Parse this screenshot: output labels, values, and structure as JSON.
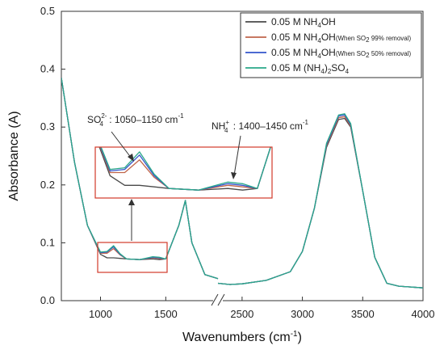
{
  "chart_data": {
    "type": "line",
    "xlabel": "Wavenumbers (cm",
    "xlabel_sup": "-1",
    "xlabel_close": ")",
    "ylabel": "Absorbance (A)",
    "ylim": [
      0,
      0.5
    ],
    "y_ticks": [
      "0.0",
      "0.1",
      "0.2",
      "0.3",
      "0.4",
      "0.5"
    ],
    "x_ticks": [
      "1000",
      "1500",
      "2500",
      "3000",
      "3500",
      "4000"
    ],
    "x_axis_break": [
      1900,
      2300
    ],
    "legend": {
      "placement": "top-right",
      "entries": [
        {
          "main": "0.05 M NH",
          "sub": "4",
          "tail": "OH",
          "note": ""
        },
        {
          "main": "0.05 M NH",
          "sub": "4",
          "tail": "OH",
          "note": "(When SO",
          "note_sub": "2",
          "note_tail": " 99% removal)"
        },
        {
          "main": "0.05 M NH",
          "sub": "4",
          "tail": "OH",
          "note": "(When SO",
          "note_sub": "2",
          "note_tail": " 50% removal)"
        },
        {
          "main": "0.05 M (NH",
          "sub": "4",
          "tail": ")",
          "sub2": "2",
          "tail2": "SO",
          "sub3": "4"
        }
      ]
    },
    "annotations": {
      "sulfate": {
        "ion": "SO",
        "sub": "4",
        "sup": "2-",
        "text": " : 1050–1150 cm",
        "unit_sup": "-1"
      },
      "ammonium": {
        "ion": "NH",
        "sub": "4",
        "sup": "+",
        "text": " : 1400–1450 cm",
        "unit_sup": "-1"
      }
    },
    "series": [
      {
        "color": "#4a4a4a",
        "x": [
          700,
          800,
          900,
          1000,
          1050,
          1100,
          1150,
          1200,
          1300,
          1400,
          1450,
          1500,
          1600,
          1650,
          1700,
          1800,
          1900,
          2300,
          2400,
          2500,
          2700,
          2900,
          3000,
          3100,
          3200,
          3300,
          3350,
          3400,
          3500,
          3600,
          3700,
          3800,
          4000
        ],
        "y": [
          0.385,
          0.24,
          0.13,
          0.08,
          0.074,
          0.074,
          0.073,
          0.072,
          0.071,
          0.072,
          0.071,
          0.072,
          0.13,
          0.173,
          0.1,
          0.045,
          0.038,
          0.03,
          0.028,
          0.029,
          0.035,
          0.05,
          0.085,
          0.16,
          0.265,
          0.313,
          0.315,
          0.3,
          0.19,
          0.075,
          0.03,
          0.025,
          0.022
        ]
      },
      {
        "color": "#c0654b",
        "x": [
          700,
          800,
          900,
          1000,
          1050,
          1100,
          1150,
          1200,
          1300,
          1400,
          1450,
          1500,
          1600,
          1650,
          1700,
          1800,
          1900,
          2300,
          2400,
          2500,
          2700,
          2900,
          3000,
          3100,
          3200,
          3300,
          3350,
          3400,
          3500,
          3600,
          3700,
          3800,
          4000
        ],
        "y": [
          0.385,
          0.24,
          0.13,
          0.082,
          0.082,
          0.09,
          0.079,
          0.072,
          0.071,
          0.074,
          0.073,
          0.072,
          0.13,
          0.173,
          0.1,
          0.045,
          0.038,
          0.03,
          0.028,
          0.029,
          0.035,
          0.05,
          0.085,
          0.16,
          0.268,
          0.316,
          0.318,
          0.302,
          0.19,
          0.075,
          0.03,
          0.025,
          0.022
        ]
      },
      {
        "color": "#3355cc",
        "x": [
          700,
          800,
          900,
          1000,
          1050,
          1100,
          1150,
          1200,
          1300,
          1400,
          1450,
          1500,
          1600,
          1650,
          1700,
          1800,
          1900,
          2300,
          2400,
          2500,
          2700,
          2900,
          3000,
          3100,
          3200,
          3300,
          3350,
          3400,
          3500,
          3600,
          3700,
          3800,
          4000
        ],
        "y": [
          0.385,
          0.24,
          0.13,
          0.083,
          0.084,
          0.093,
          0.08,
          0.072,
          0.071,
          0.075,
          0.074,
          0.072,
          0.13,
          0.173,
          0.1,
          0.045,
          0.038,
          0.03,
          0.028,
          0.029,
          0.035,
          0.05,
          0.085,
          0.16,
          0.27,
          0.319,
          0.321,
          0.304,
          0.19,
          0.075,
          0.03,
          0.025,
          0.022
        ]
      },
      {
        "color": "#2aa88a",
        "x": [
          700,
          800,
          900,
          1000,
          1050,
          1100,
          1150,
          1200,
          1300,
          1400,
          1450,
          1500,
          1600,
          1650,
          1700,
          1800,
          1900,
          2300,
          2400,
          2500,
          2700,
          2900,
          3000,
          3100,
          3200,
          3300,
          3350,
          3400,
          3500,
          3600,
          3700,
          3800,
          4000
        ],
        "y": [
          0.385,
          0.24,
          0.13,
          0.084,
          0.085,
          0.095,
          0.081,
          0.072,
          0.071,
          0.076,
          0.075,
          0.072,
          0.13,
          0.173,
          0.1,
          0.045,
          0.038,
          0.03,
          0.028,
          0.029,
          0.035,
          0.05,
          0.085,
          0.16,
          0.272,
          0.321,
          0.323,
          0.306,
          0.19,
          0.075,
          0.03,
          0.025,
          0.022
        ]
      }
    ]
  }
}
